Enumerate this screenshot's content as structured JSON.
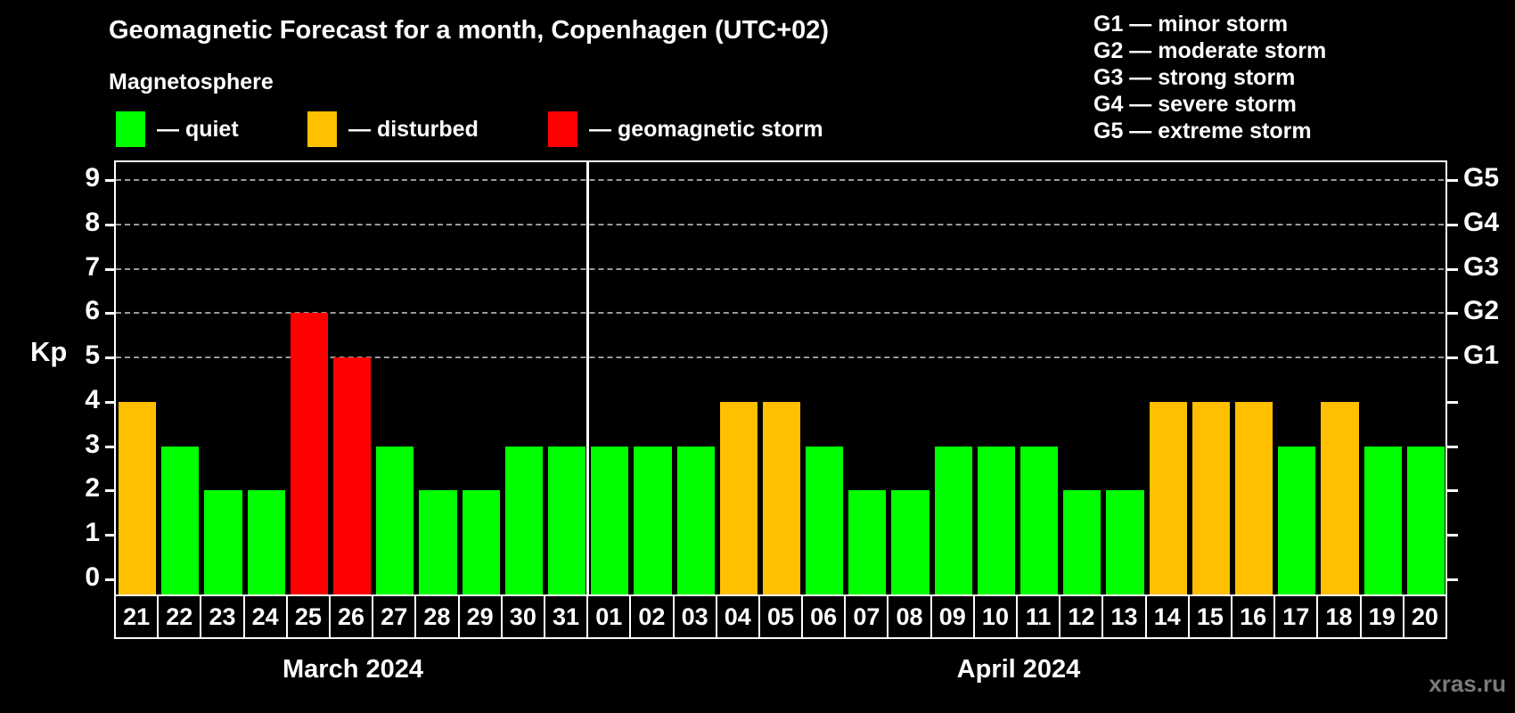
{
  "title": "Geomagnetic Forecast for a month, Copenhagen (UTC+02)",
  "subtitle": "Magnetosphere",
  "legend": [
    {
      "key": "quiet",
      "label": "— quiet",
      "color": "#00ff00"
    },
    {
      "key": "disturbed",
      "label": "— disturbed",
      "color": "#ffc000"
    },
    {
      "key": "storm",
      "label": "— geomagnetic storm",
      "color": "#ff0000"
    }
  ],
  "g_legend": [
    {
      "label": "G1 — minor storm"
    },
    {
      "label": "G2 — moderate storm"
    },
    {
      "label": "G3 — strong storm"
    },
    {
      "label": "G4 — severe storm"
    },
    {
      "label": "G5 — extreme storm"
    }
  ],
  "watermark": "xras.ru",
  "colors": {
    "background": "#000000",
    "text": "#ffffff",
    "grid": "#9a9a9a",
    "watermark": "#7a7a7a"
  },
  "chart_data": {
    "type": "bar",
    "title": "Geomagnetic Forecast for a month, Copenhagen (UTC+02)",
    "ylabel": "Kp",
    "ylim": [
      0,
      9
    ],
    "yticks": [
      0,
      1,
      2,
      3,
      4,
      5,
      6,
      7,
      8,
      9
    ],
    "gridlines_at": [
      5,
      6,
      7,
      8,
      9
    ],
    "grid": "dashed, horizontal, only at G-storm levels 5-9",
    "legend_position": "top-left (bar colors), top-right (G scale)",
    "right_axis_labels": [
      {
        "value": 5,
        "label": "G1"
      },
      {
        "value": 6,
        "label": "G2"
      },
      {
        "value": 7,
        "label": "G3"
      },
      {
        "value": 8,
        "label": "G4"
      },
      {
        "value": 9,
        "label": "G5"
      }
    ],
    "categories": [
      "21",
      "22",
      "23",
      "24",
      "25",
      "26",
      "27",
      "28",
      "29",
      "30",
      "31",
      "01",
      "02",
      "03",
      "04",
      "05",
      "06",
      "07",
      "08",
      "09",
      "10",
      "11",
      "12",
      "13",
      "14",
      "15",
      "16",
      "17",
      "18",
      "19",
      "20"
    ],
    "values": [
      4,
      3,
      2,
      2,
      6,
      5,
      3,
      2,
      2,
      3,
      3,
      3,
      3,
      3,
      4,
      4,
      3,
      2,
      2,
      3,
      3,
      3,
      2,
      2,
      4,
      4,
      4,
      3,
      4,
      3,
      3
    ],
    "statuses": [
      "disturbed",
      "quiet",
      "quiet",
      "quiet",
      "storm",
      "storm",
      "quiet",
      "quiet",
      "quiet",
      "quiet",
      "quiet",
      "quiet",
      "quiet",
      "quiet",
      "disturbed",
      "disturbed",
      "quiet",
      "quiet",
      "quiet",
      "quiet",
      "quiet",
      "quiet",
      "quiet",
      "quiet",
      "disturbed",
      "disturbed",
      "disturbed",
      "quiet",
      "disturbed",
      "quiet",
      "quiet"
    ],
    "status_colors": {
      "quiet": "#00ff00",
      "disturbed": "#ffc000",
      "storm": "#ff0000"
    },
    "months": [
      {
        "label": "March 2024",
        "span": 11
      },
      {
        "label": "April 2024",
        "span": 20
      }
    ]
  }
}
